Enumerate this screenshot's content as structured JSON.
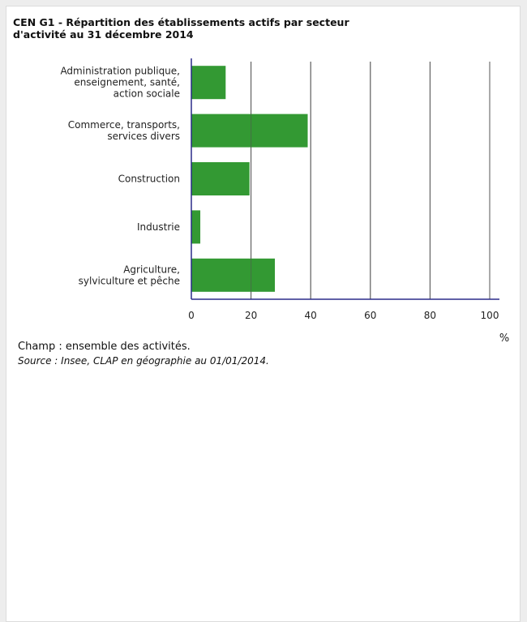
{
  "title": "CEN G1 - Répartition des établissements actifs par secteur d'activité au 31 décembre 2014",
  "footnote_champ": "Champ : ensemble des activités.",
  "footnote_source": "Source : Insee, CLAP en géographie au 01/01/2014.",
  "colors": {
    "bar": "#339933",
    "axis": "#2b2b8a",
    "grid": "#555555"
  },
  "chart_data": {
    "type": "bar",
    "orientation": "horizontal",
    "title": "CEN G1 - Répartition des établissements actifs par secteur d'activité au 31 décembre 2014",
    "xlabel": "%",
    "ylabel": "",
    "xlim": [
      0,
      100
    ],
    "xticks": [
      0,
      20,
      40,
      60,
      80,
      100
    ],
    "grid": true,
    "categories": [
      [
        "Administration publique,",
        "enseignement, santé,",
        "action sociale"
      ],
      [
        "Commerce, transports,",
        "services divers"
      ],
      [
        "Construction"
      ],
      [
        "Industrie"
      ],
      [
        "Agriculture,",
        "sylviculture et pêche"
      ]
    ],
    "values": [
      11.5,
      39.0,
      19.5,
      3.0,
      28.0
    ]
  }
}
